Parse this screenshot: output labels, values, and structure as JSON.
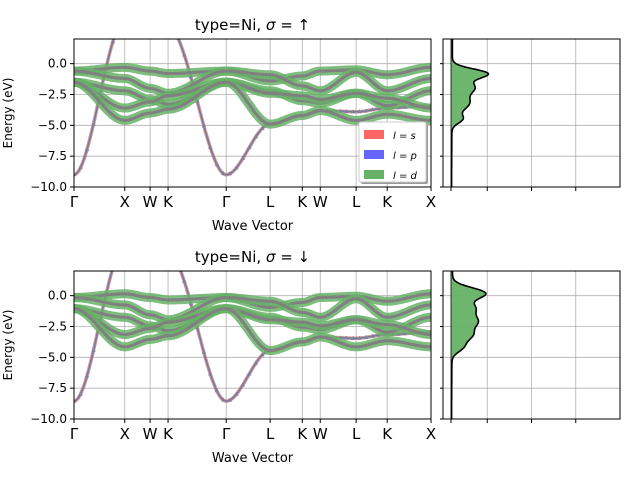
{
  "chart_data": [
    {
      "type": "line",
      "title_prefix": "type=Ni, ",
      "title_symbol": "σ",
      "title_eq": " = ",
      "title_arrow": "↑",
      "xlabel": "Wave Vector",
      "ylabel": "Energy (eV)",
      "ylim": [
        -10,
        2
      ],
      "yticks": [
        0.0,
        -2.5,
        -5.0,
        -7.5,
        -10.0
      ],
      "ytick_labels": [
        "0.0",
        "−2.5",
        "−5.0",
        "−7.5",
        "−10.0"
      ],
      "kpath_labels": [
        "Γ",
        "X",
        "W",
        "K",
        "Γ",
        "L",
        "K",
        "W",
        "L",
        "K",
        "X"
      ],
      "kpath_pos": [
        0,
        1,
        1.5,
        1.854,
        3.0,
        3.866,
        4.5,
        4.854,
        5.561,
        6.173,
        7.037
      ],
      "grid": true,
      "projected": true,
      "legend": {
        "placement": "lower-right",
        "entries": [
          {
            "label_italic": "l",
            "label_rest": " = ",
            "label_sub": "s",
            "color": "#ff6666"
          },
          {
            "label_italic": "l",
            "label_rest": " = ",
            "label_sub": "p",
            "color": "#6666ff"
          },
          {
            "label_italic": "l",
            "label_rest": " = ",
            "label_sub": "d",
            "color": "#66b266"
          }
        ]
      },
      "dos_panel": {
        "type": "area",
        "fill": "#66b266",
        "line": "#000000",
        "grid": true
      }
    },
    {
      "type": "line",
      "title_prefix": "type=Ni, ",
      "title_symbol": "σ",
      "title_eq": " = ",
      "title_arrow": "↓",
      "xlabel": "Wave Vector",
      "ylabel": "Energy (eV)",
      "ylim": [
        -10,
        2
      ],
      "yticks": [
        0.0,
        -2.5,
        -5.0,
        -7.5,
        -10.0
      ],
      "ytick_labels": [
        "0.0",
        "−2.5",
        "−5.0",
        "−7.5",
        "−10.0"
      ],
      "kpath_labels": [
        "Γ",
        "X",
        "W",
        "K",
        "Γ",
        "L",
        "K",
        "W",
        "L",
        "K",
        "X"
      ],
      "kpath_pos": [
        0,
        1,
        1.5,
        1.854,
        3.0,
        3.866,
        4.5,
        4.854,
        5.561,
        6.173,
        7.037
      ],
      "grid": true,
      "projected": true,
      "dos_panel": {
        "type": "area",
        "fill": "#66b266",
        "line": "#000000",
        "grid": true
      }
    }
  ]
}
